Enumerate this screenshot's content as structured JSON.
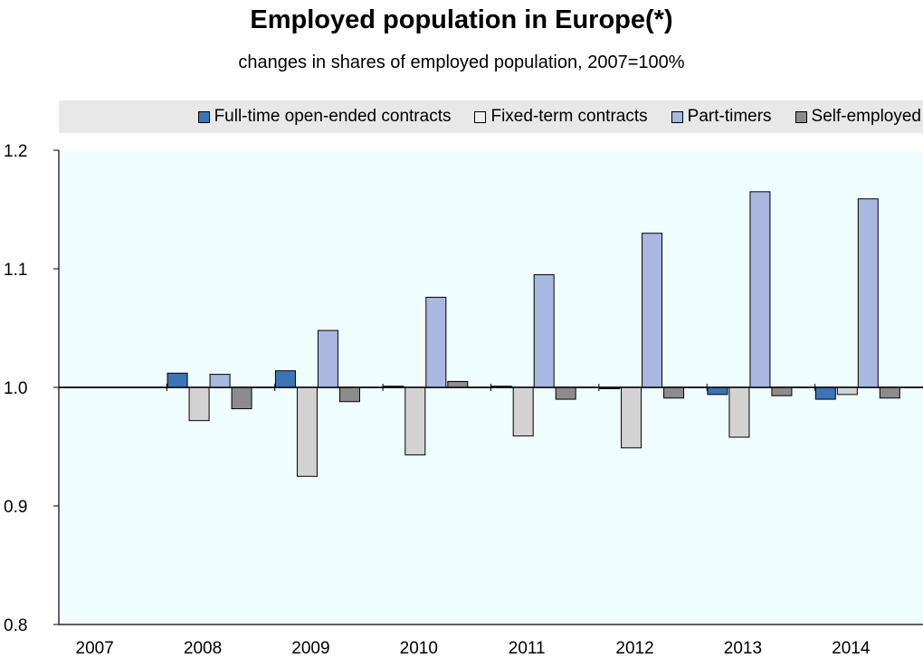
{
  "title": "Employed population in Europe(*)",
  "subtitle": "changes in shares of employed population, 2007=100%",
  "colors": {
    "plot_background": "#f0fdff",
    "full_time": "#3d74b5",
    "fixed_term": "#d3d3d3",
    "part_timers": "#a9b8e0",
    "self_employed": "#8c8c8c",
    "legend_band": "#e8e8e8"
  },
  "chart_data": {
    "type": "bar",
    "title": "Employed population in Europe(*)",
    "subtitle": "changes in shares of employed population, 2007=100%",
    "categories": [
      "2007",
      "2008",
      "2009",
      "2010",
      "2011",
      "2012",
      "2013",
      "2014"
    ],
    "baseline": 1.0,
    "ylim": [
      0.8,
      1.2
    ],
    "yticks": [
      "0.8",
      "0.9",
      "1.0",
      "1.1",
      "1.2"
    ],
    "legend_position": "top",
    "grid": false,
    "series": [
      {
        "name": "Full-time open-ended contracts",
        "color": "#3d74b5",
        "values": [
          1.0,
          1.012,
          1.014,
          1.001,
          1.001,
          0.999,
          0.994,
          0.99
        ]
      },
      {
        "name": "Fixed-term contracts",
        "color": "#d3d3d3",
        "values": [
          1.0,
          0.972,
          0.925,
          0.943,
          0.959,
          0.949,
          0.958,
          0.994
        ]
      },
      {
        "name": "Part-timers",
        "color": "#a9b8e0",
        "values": [
          1.0,
          1.011,
          1.048,
          1.076,
          1.095,
          1.13,
          1.165,
          1.159
        ]
      },
      {
        "name": "Self-employed",
        "color": "#8c8c8c",
        "values": [
          1.0,
          0.982,
          0.988,
          1.005,
          0.99,
          0.991,
          0.993,
          0.991
        ]
      }
    ]
  }
}
